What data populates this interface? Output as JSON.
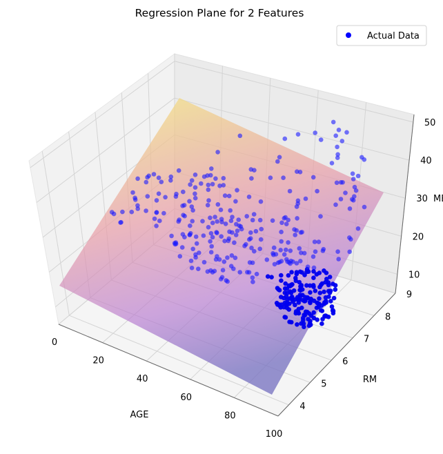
{
  "chart_data": {
    "type": "scatter3d",
    "title": "Regression Plane for 2 Features",
    "xlabel": "AGE",
    "ylabel": "RM",
    "zlabel": "MEDV",
    "xlim": [
      0,
      100
    ],
    "ylim": [
      3.5,
      9
    ],
    "zlim": [
      5,
      52
    ],
    "x_ticks": [
      0,
      20,
      40,
      60,
      80,
      100
    ],
    "y_ticks": [
      4,
      5,
      6,
      7,
      8,
      9
    ],
    "z_ticks": [
      10,
      20,
      30,
      40,
      50
    ],
    "legend": {
      "placement": "top-right",
      "entries": [
        "Actual Data"
      ]
    },
    "grid": true,
    "colors": {
      "points": "#0000ff",
      "plane_high": "#f5ec7e",
      "plane_low": "#7a74c4",
      "pane": "#f2f2f2"
    },
    "series": [
      {
        "name": "Actual Data",
        "description_points": 506
      }
    ]
  }
}
